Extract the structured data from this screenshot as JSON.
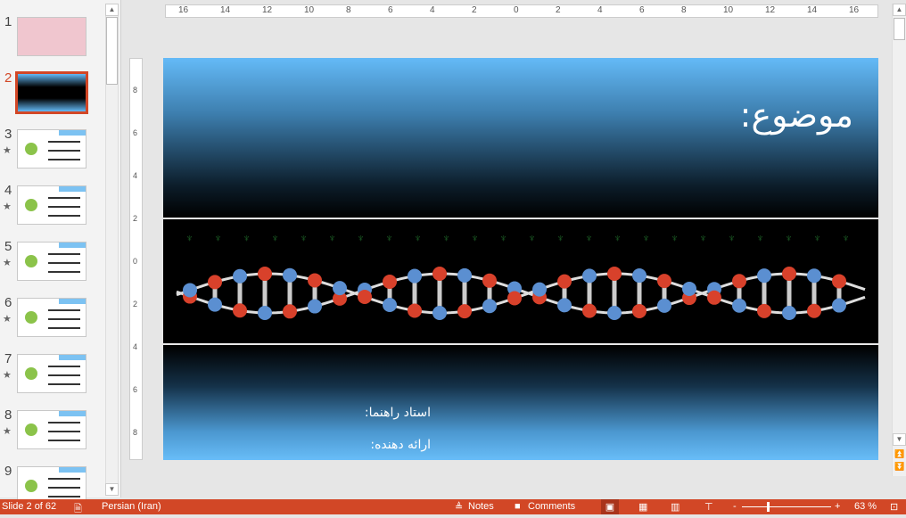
{
  "thumbnails": [
    {
      "num": "1",
      "star": false,
      "bg": "#f0c6cf"
    },
    {
      "num": "2",
      "star": false,
      "bg": "#1a3a55",
      "selected": true
    },
    {
      "num": "3",
      "star": true,
      "bg": "#ffffff"
    },
    {
      "num": "4",
      "star": true,
      "bg": "#ffffff"
    },
    {
      "num": "5",
      "star": true,
      "bg": "#ffffff"
    },
    {
      "num": "6",
      "star": true,
      "bg": "#ffffff"
    },
    {
      "num": "7",
      "star": true,
      "bg": "#ffffff"
    },
    {
      "num": "8",
      "star": true,
      "bg": "#ffffff"
    },
    {
      "num": "9",
      "star": false,
      "bg": "#ffffff"
    }
  ],
  "ruler_top": [
    "16",
    "14",
    "12",
    "10",
    "8",
    "6",
    "4",
    "2",
    "0",
    "2",
    "4",
    "6",
    "8",
    "10",
    "12",
    "14",
    "16"
  ],
  "ruler_left": [
    "8",
    "6",
    "4",
    "2",
    "0",
    "2",
    "4",
    "6",
    "8"
  ],
  "slide": {
    "title": "موضوع:",
    "advisor": "استاد راهنما:",
    "presenter": "ارائه دهنده:"
  },
  "status": {
    "slide": "Slide 2 of 62",
    "language": "Persian (Iran)",
    "notes": "Notes",
    "comments": "Comments",
    "zoom": "63 %"
  },
  "colors": {
    "accent": "#d24726",
    "sky": "#64baf7"
  }
}
